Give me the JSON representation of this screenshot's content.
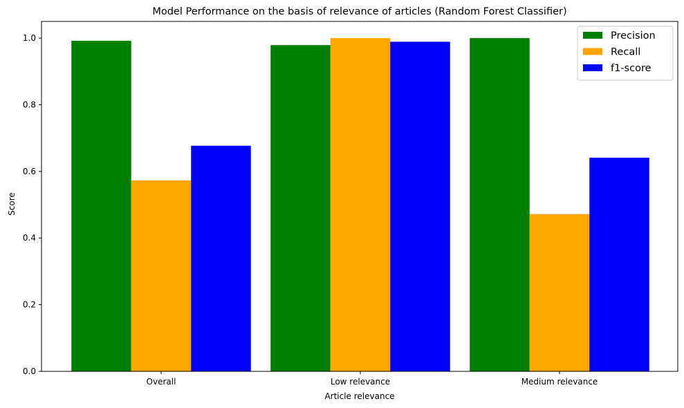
{
  "chart_data": {
    "type": "bar",
    "title": "Model Performance on the basis of relevance of articles (Random Forest Classifier)",
    "xlabel": "Article relevance",
    "ylabel": "Score",
    "categories": [
      "Overall",
      "Low relevance",
      "Medium relevance"
    ],
    "series": [
      {
        "name": "Precision",
        "color": "#008000",
        "values": [
          0.992,
          0.979,
          1.0
        ]
      },
      {
        "name": "Recall",
        "color": "#FFA500",
        "values": [
          0.573,
          1.0,
          0.472
        ]
      },
      {
        "name": "f1-score",
        "color": "#0000FF",
        "values": [
          0.677,
          0.989,
          0.641
        ]
      }
    ],
    "ylim": [
      0,
      1.05
    ],
    "yticks": [
      0.0,
      0.2,
      0.4,
      0.6,
      0.8,
      1.0
    ],
    "ytick_labels": [
      "0.0",
      "0.2",
      "0.4",
      "0.6",
      "0.8",
      "1.0"
    ],
    "grid": false,
    "legend_position": "top-right"
  }
}
